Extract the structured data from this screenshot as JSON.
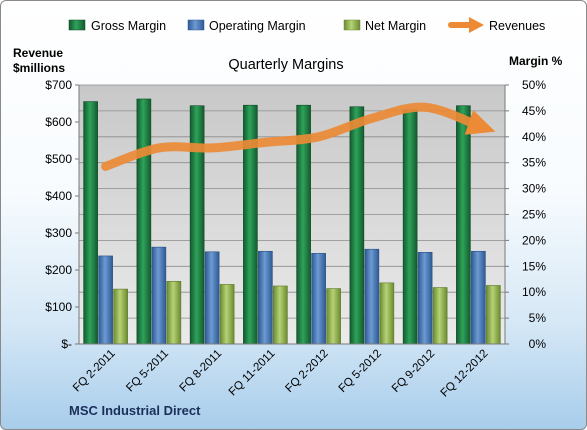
{
  "chart_data": {
    "type": "bar",
    "title": "Quarterly Margins",
    "company": "MSC Industrial Direct",
    "ylabel_left": [
      "Revenue",
      "$millions"
    ],
    "ylabel_right": "Margin %",
    "categories": [
      "FQ 2-2011",
      "FQ 5-2011",
      "FQ 8-2011",
      "FQ 11-2011",
      "FQ 2-2012",
      "FQ 5-2012",
      "FQ 9-2012",
      "FQ 12-2012"
    ],
    "ylim_left": [
      0,
      700
    ],
    "yticks_left": [
      "$-",
      "$100",
      "$200",
      "$300",
      "$400",
      "$500",
      "$600",
      "$700"
    ],
    "ylim_right": [
      0,
      50
    ],
    "yticks_right": [
      "0%",
      "5%",
      "10%",
      "15%",
      "20%",
      "25%",
      "30%",
      "35%",
      "40%",
      "45%",
      "50%"
    ],
    "series": [
      {
        "name": "Gross Margin",
        "axis": "right",
        "kind": "bar",
        "color": "#1f8a49",
        "values": [
          46.8,
          47.3,
          46.0,
          46.1,
          46.1,
          45.8,
          45.2,
          46.0
        ]
      },
      {
        "name": "Operating Margin",
        "axis": "right",
        "kind": "bar",
        "color": "#4f7dbd",
        "values": [
          17.0,
          18.7,
          17.8,
          17.9,
          17.5,
          18.3,
          17.7,
          17.9
        ]
      },
      {
        "name": "Net Margin",
        "axis": "right",
        "kind": "bar",
        "color": "#9bbb59",
        "values": [
          10.6,
          12.1,
          11.5,
          11.2,
          10.7,
          11.8,
          10.9,
          11.3
        ]
      },
      {
        "name": "Revenues",
        "axis": "left",
        "kind": "line",
        "color": "#ec8a35",
        "values": [
          480,
          530,
          530,
          545,
          560,
          610,
          640,
          590
        ]
      }
    ],
    "grid": true,
    "legend_position": "top"
  }
}
